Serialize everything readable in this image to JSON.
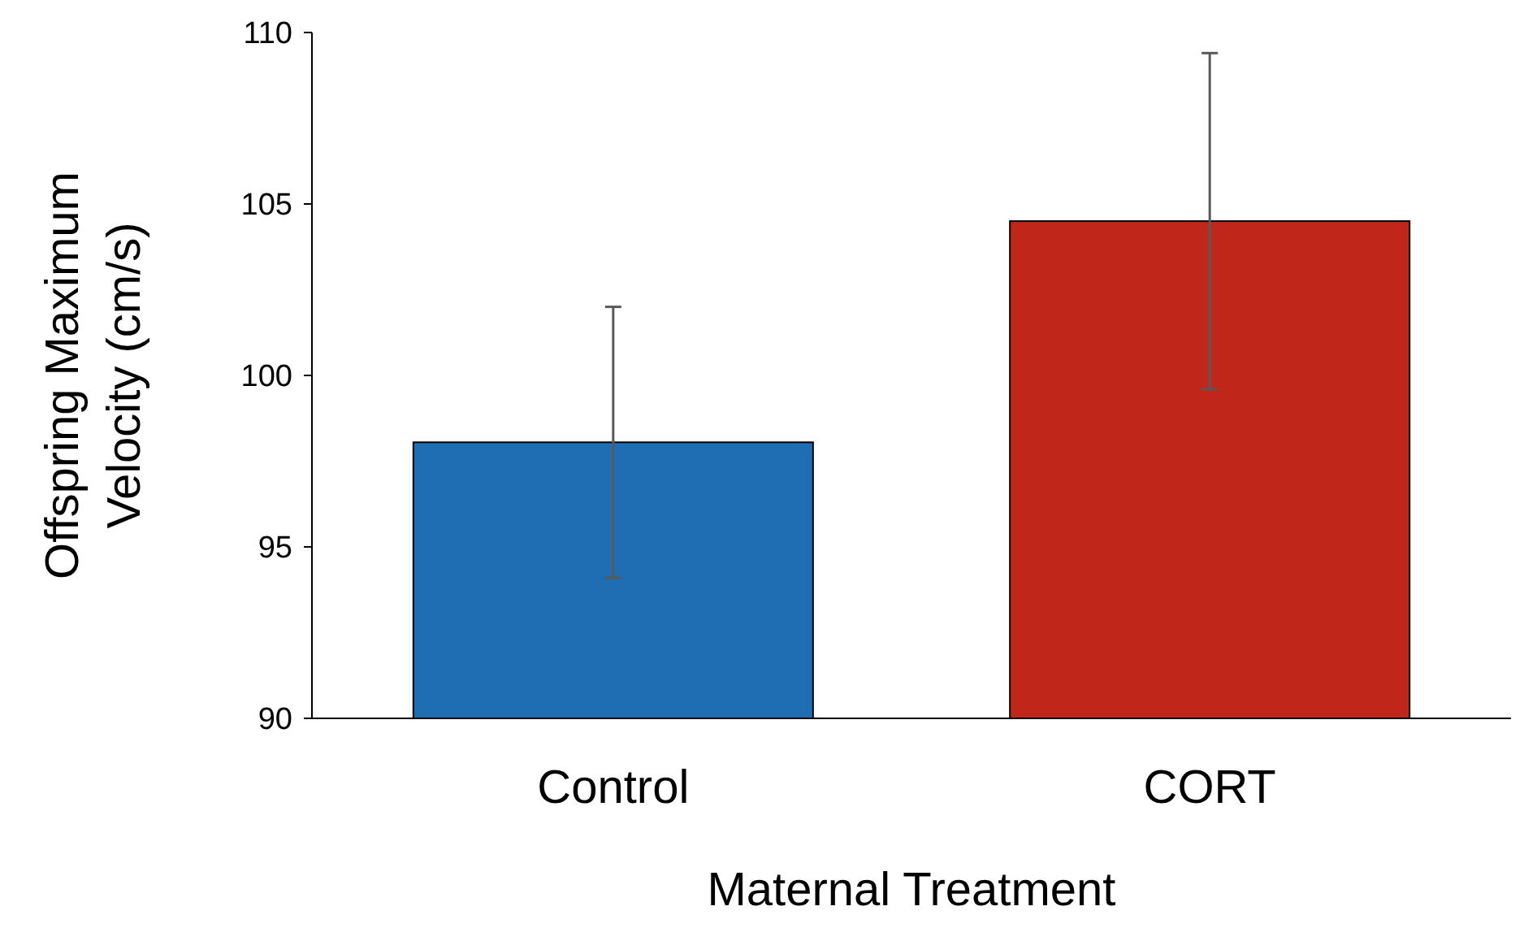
{
  "chart_data": {
    "type": "bar",
    "xlabel": "Maternal Treatment",
    "ylabel": "Offspring Maximum Velocity (cm/s)",
    "categories": [
      "Control",
      "CORT"
    ],
    "values": [
      98.05,
      104.5
    ],
    "colors": [
      "#1f6eb4",
      "#c0271a"
    ],
    "errors": [
      3.95,
      4.9
    ],
    "ylim": [
      90,
      110
    ],
    "yticks": [
      90,
      95,
      100,
      105,
      110
    ],
    "grid": false
  }
}
